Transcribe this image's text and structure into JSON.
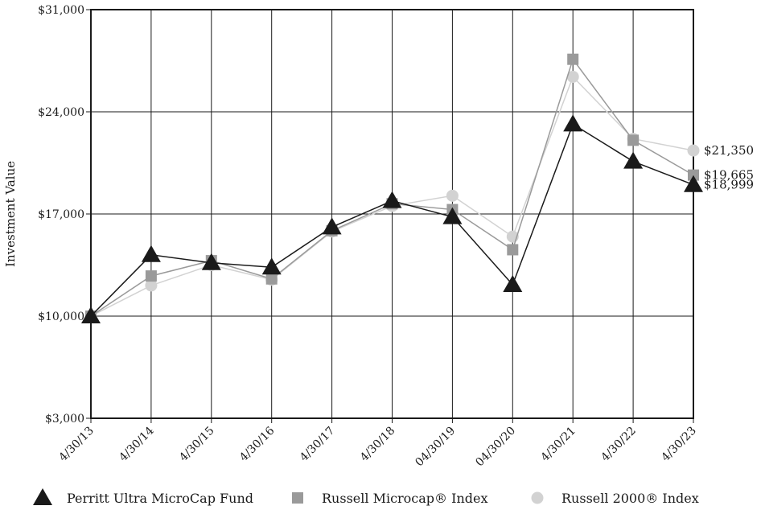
{
  "chart_data": {
    "type": "line",
    "title": "",
    "xlabel": "",
    "ylabel": "Investment Value",
    "ylim": [
      3000,
      31000
    ],
    "yticks": [
      3000,
      10000,
      17000,
      24000,
      31000
    ],
    "ytick_labels": [
      "$3,000",
      "$10,000",
      "$17,000",
      "$24,000",
      "$31,000"
    ],
    "categories": [
      "4/30/13",
      "4/30/14",
      "4/30/15",
      "4/30/16",
      "4/30/17",
      "4/30/18",
      "04/30/19",
      "04/30/20",
      "4/30/21",
      "4/30/22",
      "4/30/23"
    ],
    "grid": true,
    "legend_position": "bottom",
    "series": [
      {
        "name": "Perritt Ultra MicroCap Fund",
        "marker": "triangle",
        "color": "#1a1a1a",
        "values": [
          10000,
          14200,
          13650,
          13350,
          16100,
          17900,
          16800,
          12150,
          23150,
          20600,
          18999
        ],
        "end_label": "$18,999"
      },
      {
        "name": "Russell Microcap® Index",
        "marker": "square",
        "color": "#9a9a9a",
        "values": [
          10000,
          12750,
          13800,
          12550,
          15850,
          17700,
          17300,
          14550,
          27600,
          22050,
          19665
        ],
        "end_label": "$19,665"
      },
      {
        "name": "Russell 2000® Index",
        "marker": "circle",
        "color": "#d2d2d2",
        "values": [
          10000,
          12100,
          13500,
          12500,
          15800,
          17550,
          18250,
          15450,
          26400,
          22150,
          21350
        ],
        "end_label": "$21,350"
      }
    ]
  }
}
